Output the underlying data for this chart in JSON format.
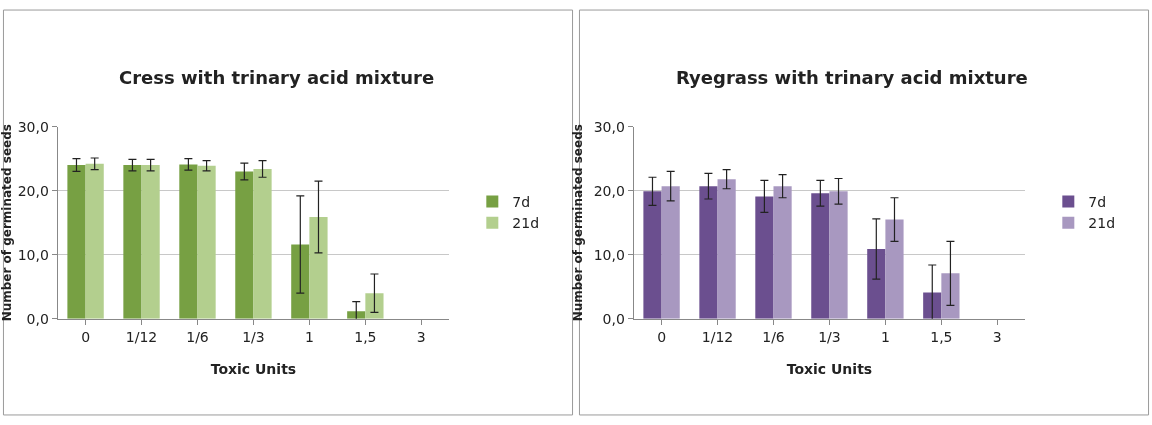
{
  "chart_data": [
    {
      "type": "bar",
      "title": "Cress with trinary acid mixture",
      "xlabel": "Toxic Units",
      "ylabel": "Number of germinated seeds",
      "categories": [
        "0",
        "1/12",
        "1/6",
        "1/3",
        "1",
        "1,5",
        "3"
      ],
      "series": [
        {
          "name": "7d",
          "color": "#77a043",
          "values": [
            24.0,
            24.0,
            24.1,
            23.0,
            11.6,
            1.2,
            null
          ],
          "errors": [
            1.0,
            0.9,
            0.9,
            1.3,
            7.6,
            1.5,
            null
          ]
        },
        {
          "name": "21d",
          "color": "#b3cf8e",
          "values": [
            24.2,
            24.0,
            23.9,
            23.4,
            15.9,
            4.0,
            null
          ],
          "errors": [
            0.9,
            0.9,
            0.8,
            1.3,
            5.6,
            3.0,
            null
          ]
        }
      ],
      "ylim": [
        0,
        30
      ],
      "yticks": [
        {
          "value": 0,
          "label": "0,0"
        },
        {
          "value": 10,
          "label": "10,0"
        },
        {
          "value": 20,
          "label": "20,0"
        },
        {
          "value": 30,
          "label": "30,0"
        }
      ],
      "grid": "y",
      "legend": "right"
    },
    {
      "type": "bar",
      "title": "Ryegrass with trinary acid mixture",
      "xlabel": "Toxic Units",
      "ylabel": "Number of germinated seeds",
      "categories": [
        "0",
        "1/12",
        "1/6",
        "1/3",
        "1",
        "1,5",
        "3"
      ],
      "series": [
        {
          "name": "7d",
          "color": "#6b4f8f",
          "values": [
            19.9,
            20.7,
            19.1,
            19.6,
            10.9,
            4.1,
            null
          ],
          "errors": [
            2.2,
            2.0,
            2.5,
            2.0,
            4.7,
            4.3,
            null
          ]
        },
        {
          "name": "21d",
          "color": "#a898c0",
          "values": [
            20.7,
            21.8,
            20.7,
            19.9,
            15.5,
            7.1,
            null
          ],
          "errors": [
            2.3,
            1.5,
            1.8,
            2.0,
            3.4,
            5.0,
            null
          ]
        }
      ],
      "ylim": [
        0,
        30
      ],
      "yticks": [
        {
          "value": 0,
          "label": "0,0"
        },
        {
          "value": 10,
          "label": "10,0"
        },
        {
          "value": 20,
          "label": "20,0"
        },
        {
          "value": 30,
          "label": "30,0"
        }
      ],
      "grid": "y",
      "legend": "right"
    }
  ]
}
